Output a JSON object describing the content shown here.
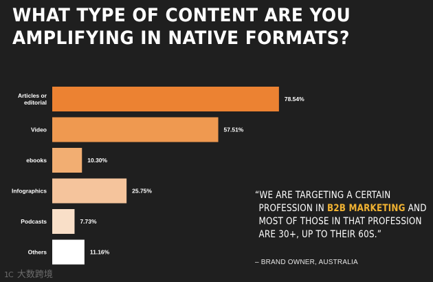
{
  "title": {
    "line1": "WHAT TYPE OF CONTENT ARE YOU",
    "line2": "AMPLIFYING IN NATIVE  FORMATS?"
  },
  "chart_data": {
    "type": "bar",
    "orientation": "horizontal",
    "categories": [
      [
        "Articles or",
        "editorial"
      ],
      [
        "Video"
      ],
      [
        "ebooks"
      ],
      [
        "Infographics"
      ],
      [
        "Podcasts"
      ],
      [
        "Others"
      ]
    ],
    "values": [
      78.54,
      57.51,
      10.3,
      25.75,
      7.73,
      11.16
    ],
    "value_labels": [
      "78.54%",
      "57.51%",
      "10.30%",
      "25.75%",
      "7.73%",
      "11.16%"
    ],
    "colors": [
      "#ec8232",
      "#ef9950",
      "#f2ae72",
      "#f5c49c",
      "#f9dfc8",
      "#ffffff"
    ],
    "xlim": [
      0,
      100
    ],
    "grid": false,
    "legend": "none"
  },
  "quote": {
    "line1": "“WE ARE TARGETING A CERTAIN",
    "line2_pre": "PROFESSION IN ",
    "line2_highlight": "B2B MARKETING",
    "line2_post": " AND",
    "line3": "MOST OF THOSE IN THAT PROFESSION",
    "line4": "ARE 30+, UP TO THEIR 60S.”",
    "highlight_color": "#f0b232"
  },
  "attribution": "– BRAND OWNER, AUSTRALIA",
  "watermark": {
    "logo": "1C",
    "text": "大数跨境"
  }
}
